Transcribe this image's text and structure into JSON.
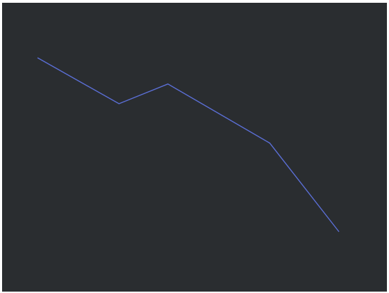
{
  "chart_data": {
    "type": "line",
    "title": "",
    "xlabel": "",
    "ylabel": "",
    "x": [
      0,
      1,
      1.6,
      2.85,
      3.7
    ],
    "series": [
      {
        "values": [
          8.2,
          6.8,
          7.4,
          5.6,
          2.9
        ]
      }
    ],
    "xlim": [
      0,
      3.7
    ],
    "ylim": [
      2.9,
      8.2
    ],
    "grid": false,
    "legend": "none",
    "colors": {
      "background": "#2a2d30",
      "line": "#5b6fd6"
    }
  }
}
